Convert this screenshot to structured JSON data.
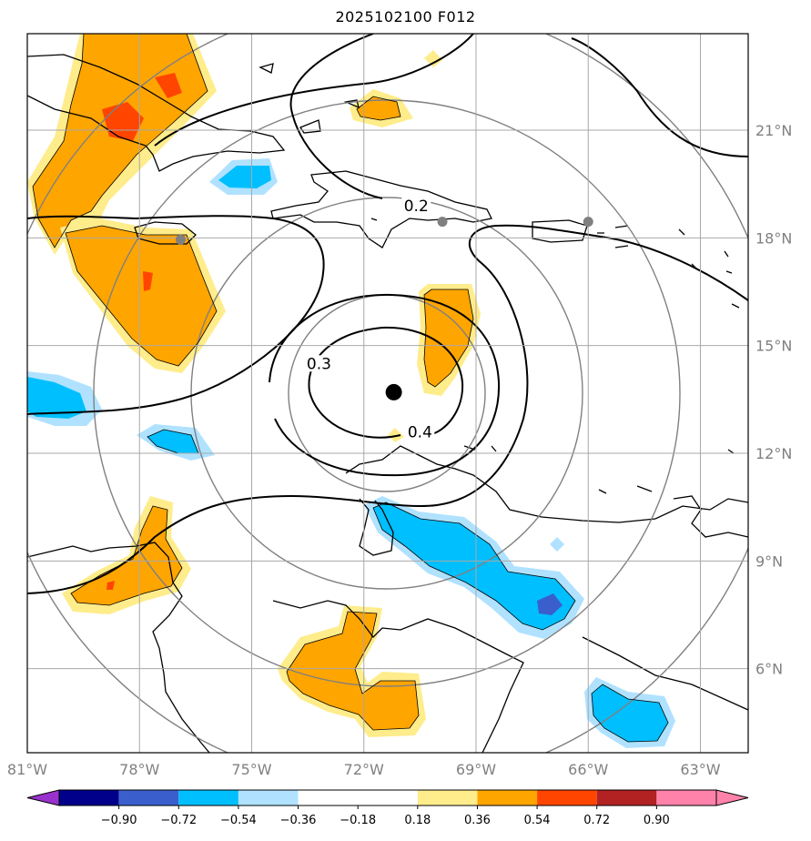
{
  "title": "2025102100 F012",
  "map": {
    "lon_ticks": [
      {
        "value": -81,
        "label": "81°W"
      },
      {
        "value": -78,
        "label": "78°W"
      },
      {
        "value": -75,
        "label": "75°W"
      },
      {
        "value": -72,
        "label": "72°W"
      },
      {
        "value": -69,
        "label": "69°W"
      },
      {
        "value": -66,
        "label": "66°W"
      },
      {
        "value": -63,
        "label": "63°W"
      }
    ],
    "lat_ticks": [
      {
        "value": 21,
        "label": "21°N"
      },
      {
        "value": 18,
        "label": "18°N"
      },
      {
        "value": 15,
        "label": "15°N"
      },
      {
        "value": 12,
        "label": "12°N"
      },
      {
        "value": 9,
        "label": "9°N"
      },
      {
        "value": 6,
        "label": "6°N"
      }
    ],
    "center": {
      "lon": -71.2,
      "lat": 13.7
    },
    "contour_labels": [
      {
        "text": "0.2",
        "lon": -70.6,
        "lat": 18.8
      },
      {
        "text": "0.3",
        "lon": -73.2,
        "lat": 14.4
      },
      {
        "text": "0.4",
        "lon": -70.5,
        "lat": 12.5
      }
    ],
    "stations": [
      {
        "lon": -76.9,
        "lat": 17.95
      },
      {
        "lon": -69.9,
        "lat": 18.45
      },
      {
        "lon": -66.0,
        "lat": 18.45
      }
    ],
    "colors": {
      "neg_strong": "#9932CC",
      "neg_dark": "#00008B",
      "neg_mid": "#3A5FCD",
      "neg_light": "#00BFFF",
      "neg_pale": "#B0E2FF",
      "pos_pale": "#FFEC8B",
      "pos_mid": "#FFA500",
      "pos_strong": "#FF4500",
      "pos_dark": "#B22222",
      "pos_top": "#FF82AB"
    }
  },
  "colorbar": {
    "labels": [
      "−0.90",
      "−0.72",
      "−0.54",
      "−0.36",
      "−0.18",
      "0.18",
      "0.36",
      "0.54",
      "0.72",
      "0.90"
    ],
    "colors": [
      "#00008B",
      "#3A5FCD",
      "#00BFFF",
      "#B0E2FF",
      "#FFFFFF",
      "#FFFFFF",
      "#FFEC8B",
      "#FFA500",
      "#FF4500",
      "#B22222"
    ],
    "under_color": "#9932CC",
    "over_color": "#FF82AB"
  }
}
